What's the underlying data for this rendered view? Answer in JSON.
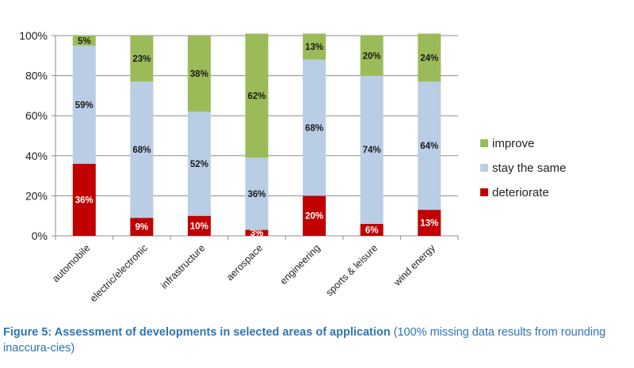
{
  "chart_data": {
    "type": "bar",
    "stacked": true,
    "percent": true,
    "categories": [
      "automobile",
      "electric/electronic",
      "infrastructure",
      "aerospace",
      "engineering",
      "sports & leisure",
      "wind energy"
    ],
    "series": [
      {
        "name": "deteriorate",
        "color": "#c00000",
        "values": [
          36,
          9,
          10,
          3,
          20,
          6,
          13
        ],
        "labels": [
          "36%",
          "9%",
          "10%",
          "3%",
          "20%",
          "6%",
          "13%"
        ]
      },
      {
        "name": "stay the same",
        "color": "#b9cde5",
        "values": [
          59,
          68,
          52,
          36,
          68,
          74,
          64
        ],
        "labels": [
          "59%",
          "68%",
          "52%",
          "36%",
          "68%",
          "74%",
          "64%"
        ]
      },
      {
        "name": "improve",
        "color": "#9bbb59",
        "values": [
          5,
          23,
          38,
          62,
          13,
          20,
          24
        ],
        "labels": [
          "5%",
          "23%",
          "38%",
          "62%",
          "13%",
          "20%",
          "24%"
        ]
      }
    ],
    "ylim": [
      0,
      100
    ],
    "yticks": [
      "0%",
      "20%",
      "40%",
      "60%",
      "80%",
      "100%"
    ],
    "legend_order": [
      "improve",
      "stay the same",
      "deteriorate"
    ],
    "legend_position": "right"
  },
  "caption": {
    "lead": "Figure 5: Assessment of developments in selected areas of application",
    "rest": " (100% missing data results from rounding inaccura-cies)"
  }
}
